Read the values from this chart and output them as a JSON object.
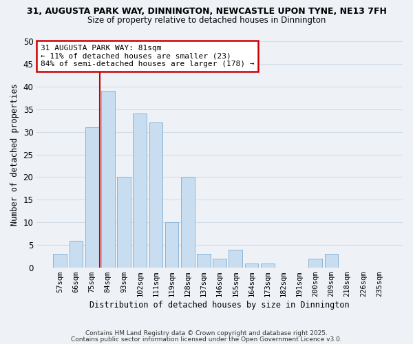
{
  "title_line1": "31, AUGUSTA PARK WAY, DINNINGTON, NEWCASTLE UPON TYNE, NE13 7FH",
  "title_line2": "Size of property relative to detached houses in Dinnington",
  "xlabel": "Distribution of detached houses by size in Dinnington",
  "ylabel": "Number of detached properties",
  "categories": [
    "57sqm",
    "66sqm",
    "75sqm",
    "84sqm",
    "93sqm",
    "102sqm",
    "111sqm",
    "119sqm",
    "128sqm",
    "137sqm",
    "146sqm",
    "155sqm",
    "164sqm",
    "173sqm",
    "182sqm",
    "191sqm",
    "200sqm",
    "209sqm",
    "218sqm",
    "226sqm",
    "235sqm"
  ],
  "values": [
    3,
    6,
    31,
    39,
    20,
    34,
    32,
    10,
    20,
    3,
    2,
    4,
    1,
    1,
    0,
    0,
    2,
    3,
    0,
    0,
    0
  ],
  "bar_color": "#c8ddf0",
  "bar_edge_color": "#8ab4d4",
  "vline_color": "#cc0000",
  "ylim": [
    0,
    50
  ],
  "yticks": [
    0,
    5,
    10,
    15,
    20,
    25,
    30,
    35,
    40,
    45,
    50
  ],
  "annotation_line1": "31 AUGUSTA PARK WAY: 81sqm",
  "annotation_line2": "← 11% of detached houses are smaller (23)",
  "annotation_line3": "84% of semi-detached houses are larger (178) →",
  "grid_color": "#d0dce8",
  "bg_color": "#eef2f7",
  "footer1": "Contains HM Land Registry data © Crown copyright and database right 2025.",
  "footer2": "Contains public sector information licensed under the Open Government Licence v3.0."
}
